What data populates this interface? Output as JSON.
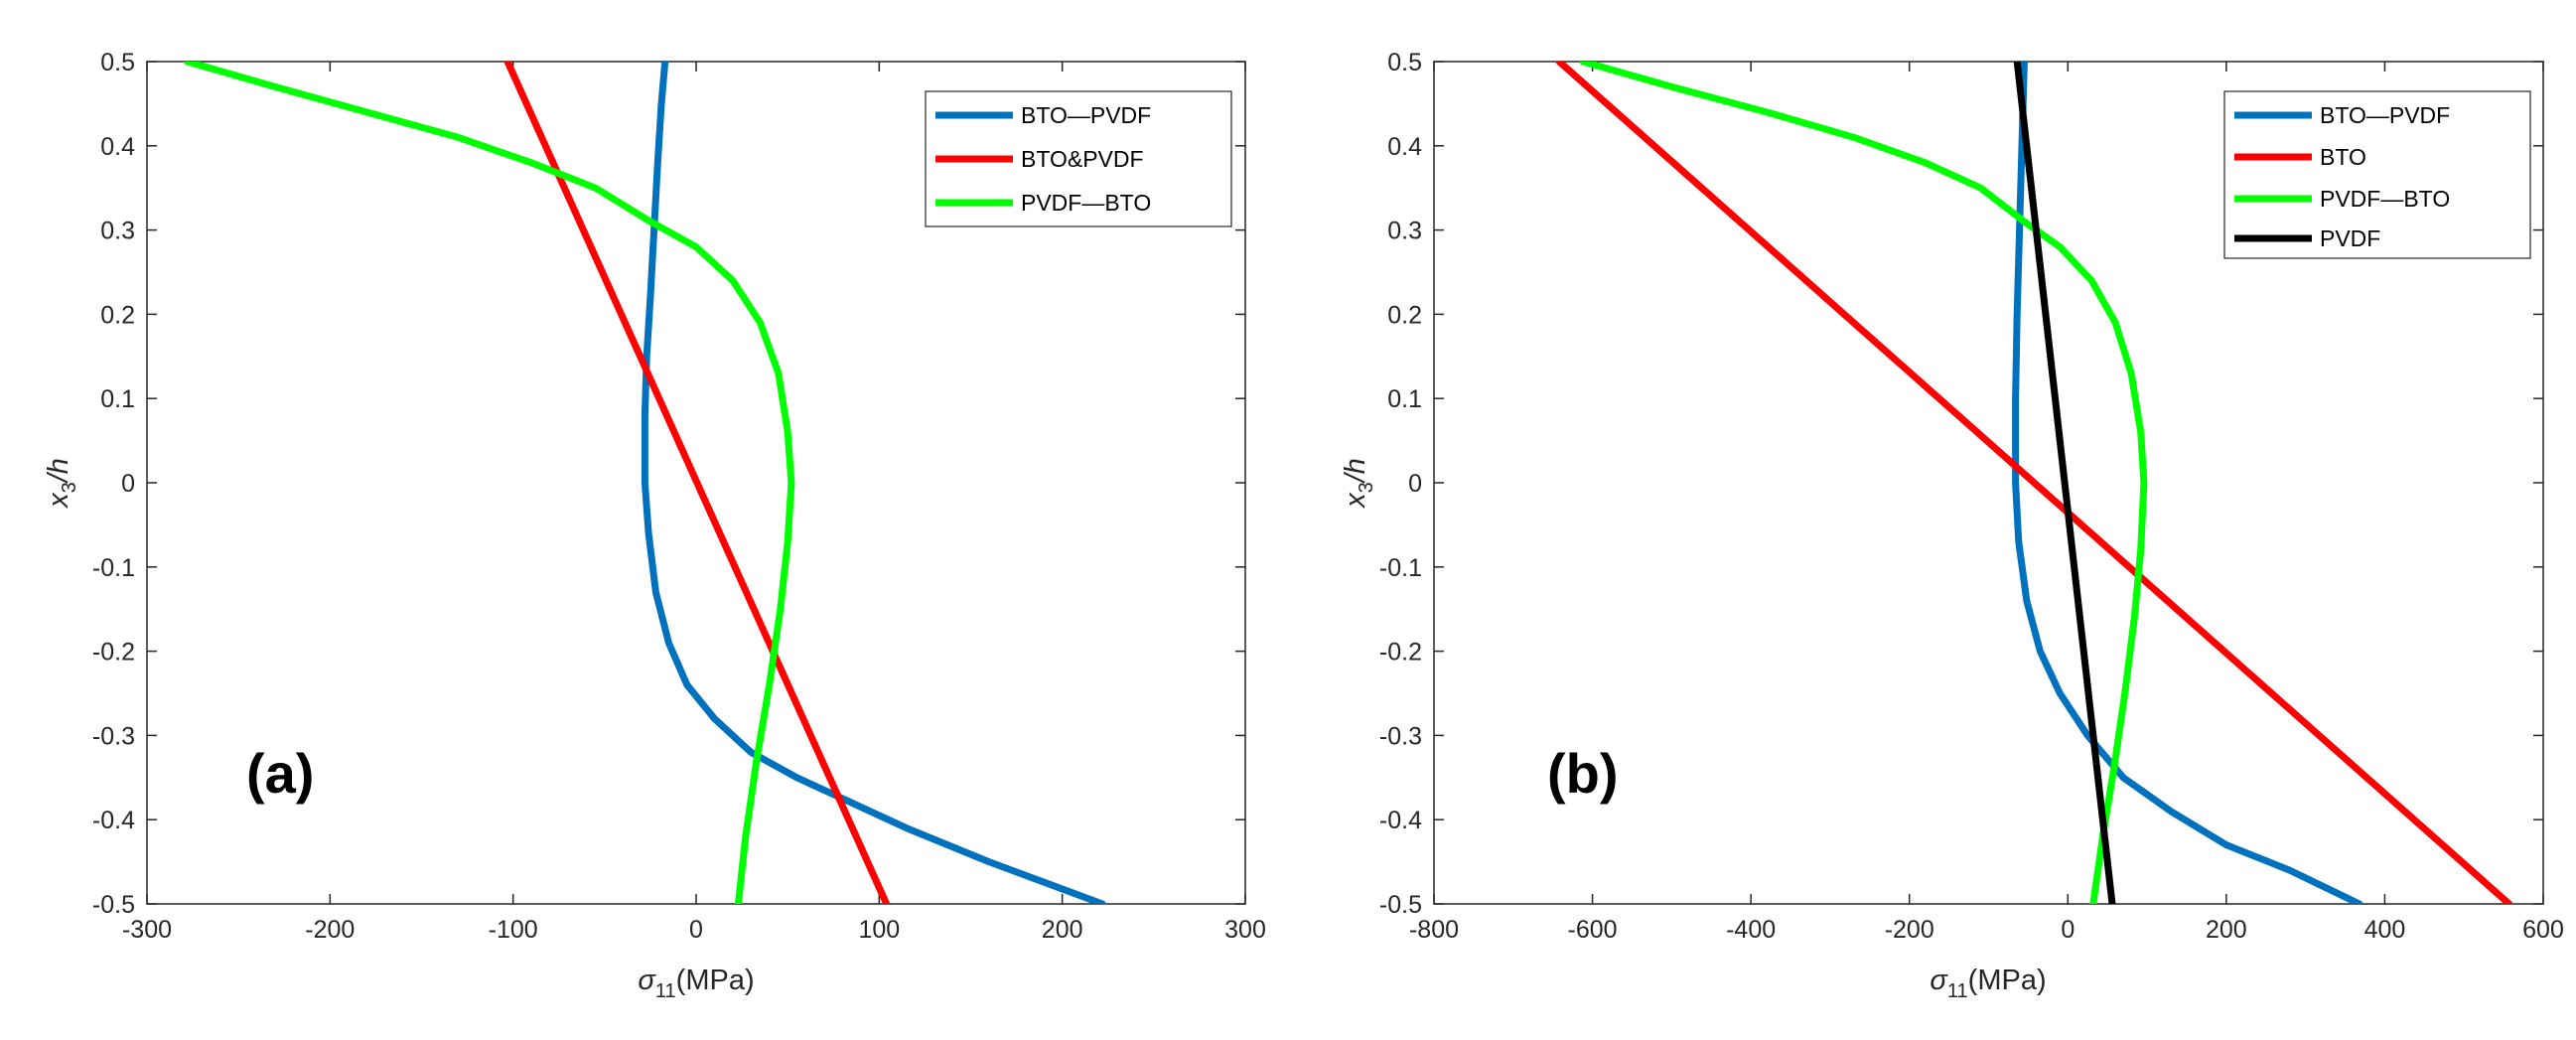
{
  "chart_data": [
    {
      "type": "line",
      "panel_label": "(a)",
      "xlabel_symbol": "σ",
      "xlabel_sub": "11",
      "xlabel_unit": "(MPa)",
      "ylabel_var": "x",
      "ylabel_sub": "3",
      "ylabel_rest": "/h",
      "xlim": [
        -300,
        300
      ],
      "ylim": [
        -0.5,
        0.5
      ],
      "xticks": [
        "-300",
        "-200",
        "-100",
        "0",
        "100",
        "200",
        "300"
      ],
      "yticks": [
        "-0.5",
        "-0.4",
        "-0.3",
        "-0.2",
        "-0.1",
        "0",
        "0.1",
        "0.2",
        "0.3",
        "0.4",
        "0.5"
      ],
      "legend_position": "top-right",
      "series": [
        {
          "name": "BTO—PVDF",
          "color": "#0072BD",
          "points": [
            [
              222,
              -0.5
            ],
            [
              160,
              -0.45
            ],
            [
              115,
              -0.41
            ],
            [
              85,
              -0.38
            ],
            [
              55,
              -0.35
            ],
            [
              30,
              -0.32
            ],
            [
              10,
              -0.28
            ],
            [
              -5,
              -0.24
            ],
            [
              -15,
              -0.19
            ],
            [
              -22,
              -0.13
            ],
            [
              -26,
              -0.06
            ],
            [
              -28,
              0.0
            ],
            [
              -28,
              0.08
            ],
            [
              -27,
              0.15
            ],
            [
              -25,
              0.22
            ],
            [
              -23,
              0.3
            ],
            [
              -21,
              0.38
            ],
            [
              -19,
              0.45
            ],
            [
              -17,
              0.5
            ]
          ]
        },
        {
          "name": "BTO&PVDF",
          "color": "#FF0000",
          "points": [
            [
              -103,
              0.5
            ],
            [
              104,
              -0.5
            ]
          ]
        },
        {
          "name": "PVDF—BTO",
          "color": "#00FF00",
          "points": [
            [
              -278,
              0.5
            ],
            [
              -230,
              0.47
            ],
            [
              -180,
              0.44
            ],
            [
              -130,
              0.41
            ],
            [
              -90,
              0.38
            ],
            [
              -55,
              0.35
            ],
            [
              -25,
              0.31
            ],
            [
              0,
              0.28
            ],
            [
              20,
              0.24
            ],
            [
              35,
              0.19
            ],
            [
              45,
              0.13
            ],
            [
              50,
              0.06
            ],
            [
              52,
              0.0
            ],
            [
              50,
              -0.07
            ],
            [
              46,
              -0.15
            ],
            [
              40,
              -0.24
            ],
            [
              33,
              -0.33
            ],
            [
              27,
              -0.42
            ],
            [
              23,
              -0.5
            ]
          ]
        }
      ]
    },
    {
      "type": "line",
      "panel_label": "(b)",
      "xlabel_symbol": "σ",
      "xlabel_sub": "11",
      "xlabel_unit": "(MPa)",
      "ylabel_var": "x",
      "ylabel_sub": "3",
      "ylabel_rest": "/h",
      "xlim": [
        -800,
        600
      ],
      "ylim": [
        -0.5,
        0.5
      ],
      "xticks": [
        "-800",
        "-600",
        "-400",
        "-200",
        "0",
        "200",
        "400",
        "600"
      ],
      "yticks": [
        "-0.5",
        "-0.4",
        "-0.3",
        "-0.2",
        "-0.1",
        "0",
        "0.1",
        "0.2",
        "0.3",
        "0.4",
        "0.5"
      ],
      "legend_position": "top-right",
      "series": [
        {
          "name": "BTO—PVDF",
          "color": "#0072BD",
          "points": [
            [
              368,
              -0.5
            ],
            [
              280,
              -0.46
            ],
            [
              200,
              -0.43
            ],
            [
              130,
              -0.39
            ],
            [
              70,
              -0.35
            ],
            [
              25,
              -0.3
            ],
            [
              -10,
              -0.25
            ],
            [
              -35,
              -0.2
            ],
            [
              -52,
              -0.14
            ],
            [
              -62,
              -0.07
            ],
            [
              -66,
              0.0
            ],
            [
              -66,
              0.1
            ],
            [
              -64,
              0.2
            ],
            [
              -61,
              0.3
            ],
            [
              -58,
              0.4
            ],
            [
              -55,
              0.5
            ]
          ]
        },
        {
          "name": "BTO",
          "color": "#FF0000",
          "points": [
            [
              -642,
              0.5
            ],
            [
              557,
              -0.5
            ]
          ]
        },
        {
          "name": "PVDF—BTO",
          "color": "#00FF00",
          "points": [
            [
              -612,
              0.5
            ],
            [
              -500,
              0.47
            ],
            [
              -380,
              0.44
            ],
            [
              -270,
              0.41
            ],
            [
              -180,
              0.38
            ],
            [
              -110,
              0.35
            ],
            [
              -55,
              0.31
            ],
            [
              -10,
              0.28
            ],
            [
              30,
              0.24
            ],
            [
              60,
              0.19
            ],
            [
              80,
              0.13
            ],
            [
              92,
              0.06
            ],
            [
              96,
              0.0
            ],
            [
              92,
              -0.08
            ],
            [
              84,
              -0.16
            ],
            [
              72,
              -0.25
            ],
            [
              58,
              -0.34
            ],
            [
              44,
              -0.42
            ],
            [
              32,
              -0.5
            ]
          ]
        },
        {
          "name": "PVDF",
          "color": "#000000",
          "points": [
            [
              -64,
              0.5
            ],
            [
              56,
              -0.5
            ]
          ]
        }
      ]
    }
  ]
}
